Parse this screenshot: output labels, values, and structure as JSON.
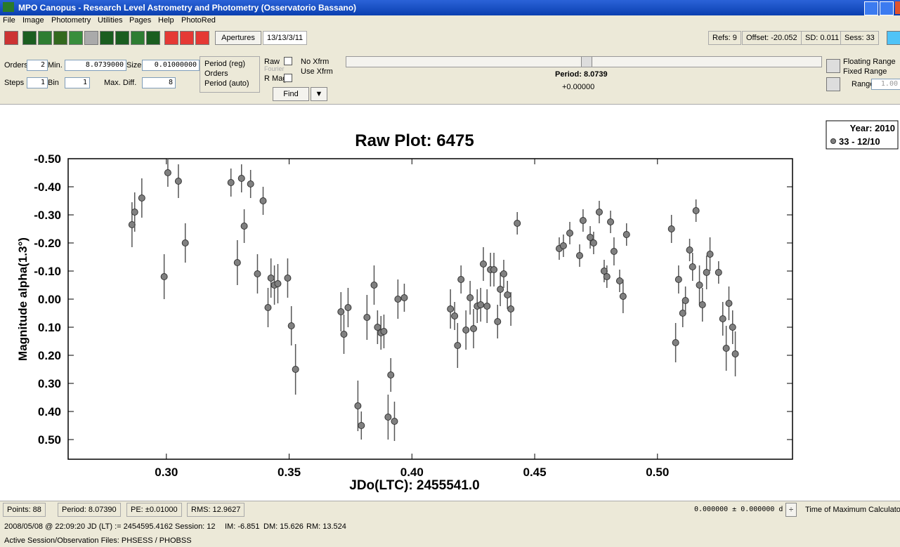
{
  "window": {
    "title": "MPO Canopus - Research Level Astrometry and Photometry (Osservatorio Bassano)"
  },
  "menu": [
    "File",
    "Image",
    "Photometry",
    "Utilities",
    "Pages",
    "Help",
    "PhotoRed"
  ],
  "toolbar": {
    "apertures": "Apertures",
    "date": "13/13/3/11",
    "refs": "Refs: 9",
    "offset": "Offset: -20.052",
    "sd": "SD: 0.011",
    "sess": "Sess: 33"
  },
  "controls": {
    "orders_label": "Orders",
    "orders": "2",
    "min_label": "Min.",
    "min": "8.0739000",
    "size_label": "Size",
    "size": "0.01000000",
    "steps_label": "Steps",
    "steps": "1",
    "bin_label": "Bin",
    "bin": "1",
    "maxdiff_label": "Max. Diff.",
    "maxdiff": "8",
    "radios": [
      "Period (reg)",
      "Orders",
      "Period (auto)"
    ],
    "raw": "Raw",
    "fourier": "Fourier",
    "rmag": "R Mag",
    "noxfrm": "No Xfrm",
    "usexfrm": "Use Xfrm",
    "find": "Find",
    "period": "Period: 8.0739",
    "shift": "+0.00000",
    "floating": "Floating Range",
    "fixed": "Fixed Range",
    "range_label": "Range",
    "range": "1.00"
  },
  "status": {
    "points": "Points: 88",
    "period": "Period: 8.07390",
    "pe": "PE: ±0.01000",
    "rms": "RMS: 12.9627",
    "tmax": "0.000000 ± 0.000000 d",
    "calc": "Time of Maximum Calculator",
    "jd": "2008/05/08 @ 22:09:20 JD (LT) := 2454595.4162  Session: 12",
    "im": "IM: -6.851",
    "dm": "DM: 15.626",
    "rm": "RM: 13.524",
    "files": "Active Session/Observation Files: PHSESS / PHOBSS"
  },
  "chart_data": {
    "type": "scatter",
    "title": "Raw Plot: 6475",
    "x_label": "JDo(LTC): 2455541.0",
    "y_label": "Magnitude alpha(1.3°)",
    "invert_y": true,
    "legend_title": "Year: 2010",
    "legend_position": "upper right",
    "xlim": [
      0.26,
      0.555
    ],
    "xticks": [
      {
        "value": 0.3,
        "label": "0.30"
      },
      {
        "value": 0.35,
        "label": "0.35"
      },
      {
        "value": 0.4,
        "label": "0.40"
      },
      {
        "value": 0.45,
        "label": "0.45"
      },
      {
        "value": 0.5,
        "label": "0.50"
      }
    ],
    "ylim": [
      -0.5,
      0.57
    ],
    "yticks": [
      {
        "value": -0.5,
        "label": "-0.50"
      },
      {
        "value": -0.4,
        "label": "-0.40"
      },
      {
        "value": -0.3,
        "label": "-0.30"
      },
      {
        "value": -0.2,
        "label": "-0.20"
      },
      {
        "value": -0.1,
        "label": "-0.10"
      },
      {
        "value": 0,
        "label": "0.00"
      },
      {
        "value": 0.1,
        "label": "0.10"
      },
      {
        "value": 0.2,
        "label": "0.20"
      },
      {
        "value": 0.3,
        "label": "0.30"
      },
      {
        "value": 0.4,
        "label": "0.40"
      },
      {
        "value": 0.5,
        "label": "0.50"
      }
    ],
    "x": [
      0.286,
      0.2871,
      0.29,
      0.2991,
      0.3006,
      0.3049,
      0.3077,
      0.3263,
      0.3289,
      0.3306,
      0.3317,
      0.3343,
      0.3371,
      0.3394,
      0.3414,
      0.3426,
      0.344,
      0.3454,
      0.3494,
      0.3509,
      0.3526,
      0.3711,
      0.3723,
      0.374,
      0.378,
      0.3794,
      0.3817,
      0.3846,
      0.386,
      0.3874,
      0.3886,
      0.3903,
      0.3914,
      0.3929,
      0.3943,
      0.3969,
      0.4157,
      0.4174,
      0.4186,
      0.42,
      0.422,
      0.4237,
      0.4251,
      0.4266,
      0.428,
      0.4291,
      0.4306,
      0.432,
      0.4334,
      0.4349,
      0.436,
      0.4374,
      0.4389,
      0.4403,
      0.4429,
      0.46,
      0.4617,
      0.4643,
      0.4683,
      0.4697,
      0.4726,
      0.474,
      0.4763,
      0.4783,
      0.4794,
      0.4809,
      0.4823,
      0.4846,
      0.486,
      0.4874,
      0.5057,
      0.5074,
      0.5086,
      0.5103,
      0.5114,
      0.5131,
      0.5143,
      0.5157,
      0.5171,
      0.5183,
      0.52,
      0.5214,
      0.5249,
      0.5266,
      0.528,
      0.5291,
      0.5306,
      0.5317
    ],
    "series": [
      {
        "name": "33 - 12/10",
        "color": "#808080",
        "values": [
          -0.265,
          -0.31,
          -0.36,
          -0.08,
          -0.45,
          -0.42,
          -0.2,
          -0.415,
          -0.13,
          -0.43,
          -0.26,
          -0.41,
          -0.09,
          -0.35,
          0.03,
          -0.075,
          -0.05,
          -0.055,
          -0.075,
          0.095,
          0.25,
          0.045,
          0.125,
          0.03,
          0.38,
          0.45,
          0.065,
          -0.05,
          0.1,
          0.12,
          0.115,
          0.42,
          0.27,
          0.435,
          0,
          -0.005,
          0.035,
          0.06,
          0.165,
          -0.07,
          0.11,
          -0.005,
          0.105,
          0.025,
          0.02,
          -0.125,
          0.025,
          -0.105,
          -0.105,
          0.08,
          -0.035,
          -0.09,
          -0.015,
          0.035,
          -0.27,
          -0.18,
          -0.19,
          -0.235,
          -0.155,
          -0.28,
          -0.22,
          -0.2,
          -0.31,
          -0.1,
          -0.08,
          -0.275,
          -0.17,
          -0.065,
          -0.01,
          -0.23,
          -0.25,
          0.155,
          -0.07,
          0.05,
          0.005,
          -0.175,
          -0.115,
          -0.315,
          -0.05,
          0.02,
          -0.095,
          -0.16,
          -0.095,
          0.07,
          0.175,
          0.015,
          0.1,
          0.195
        ],
        "errors": [
          0.08,
          0.07,
          0.07,
          0.08,
          0.05,
          0.06,
          0.07,
          0.05,
          0.08,
          0.05,
          0.06,
          0.05,
          0.07,
          0.05,
          0.07,
          0.07,
          0.07,
          0.07,
          0.07,
          0.07,
          0.09,
          0.07,
          0.07,
          0.07,
          0.09,
          0.05,
          0.08,
          0.07,
          0.06,
          0.06,
          0.06,
          0.08,
          0.06,
          0.07,
          0.07,
          0.05,
          0.07,
          0.05,
          0.08,
          0.05,
          0.07,
          0.06,
          0.07,
          0.06,
          0.06,
          0.06,
          0.06,
          0.06,
          0.06,
          0.06,
          0.06,
          0.05,
          0.05,
          0.06,
          0.04,
          0.04,
          0.04,
          0.04,
          0.04,
          0.04,
          0.04,
          0.04,
          0.04,
          0.04,
          0.04,
          0.04,
          0.05,
          0.04,
          0.06,
          0.04,
          0.05,
          0.07,
          0.05,
          0.05,
          0.05,
          0.04,
          0.05,
          0.04,
          0.07,
          0.06,
          0.06,
          0.06,
          0.04,
          0.06,
          0.08,
          0.06,
          0.06,
          0.08
        ]
      }
    ]
  }
}
